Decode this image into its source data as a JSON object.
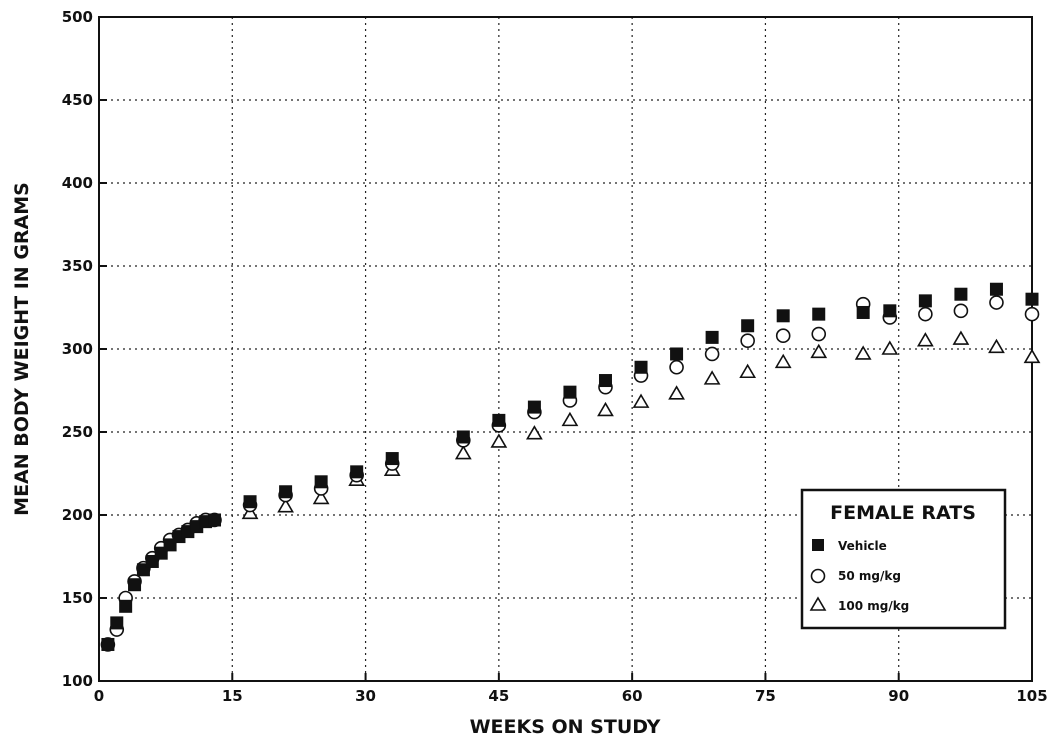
{
  "chart_data": {
    "type": "scatter",
    "title": "",
    "xlabel": "WEEKS ON STUDY",
    "ylabel": "MEAN BODY WEIGHT IN GRAMS",
    "xlim": [
      0,
      105
    ],
    "ylim": [
      100,
      500
    ],
    "xticks": [
      "0",
      "15",
      "30",
      "45",
      "60",
      "75",
      "90",
      "105"
    ],
    "yticks": [
      "100",
      "150",
      "200",
      "250",
      "300",
      "350",
      "400",
      "450",
      "500"
    ],
    "grid": true,
    "legend": {
      "title": "FEMALE RATS",
      "position": "lower-right"
    },
    "series": [
      {
        "name": "Vehicle",
        "marker": "filled-square",
        "x": [
          1,
          2,
          3,
          4,
          5,
          6,
          7,
          8,
          9,
          10,
          11,
          12,
          13,
          17,
          21,
          25,
          29,
          33,
          41,
          45,
          49,
          53,
          57,
          61,
          65,
          69,
          73,
          77,
          81,
          86,
          89,
          93,
          97,
          101,
          105
        ],
        "y": [
          122,
          135,
          145,
          158,
          167,
          172,
          177,
          182,
          187,
          190,
          193,
          196,
          197,
          208,
          214,
          220,
          226,
          234,
          247,
          257,
          265,
          274,
          281,
          289,
          297,
          307,
          314,
          320,
          321,
          322,
          323,
          329,
          333,
          336,
          330
        ]
      },
      {
        "name": "50 mg/kg",
        "marker": "open-circle",
        "x": [
          1,
          2,
          3,
          4,
          5,
          6,
          7,
          8,
          9,
          10,
          11,
          12,
          13,
          17,
          21,
          25,
          29,
          33,
          41,
          45,
          49,
          53,
          57,
          61,
          65,
          69,
          73,
          77,
          81,
          86,
          89,
          93,
          97,
          101,
          105
        ],
        "y": [
          122,
          131,
          150,
          160,
          168,
          174,
          180,
          185,
          188,
          191,
          195,
          197,
          197,
          206,
          212,
          216,
          224,
          231,
          245,
          254,
          262,
          269,
          277,
          284,
          289,
          297,
          305,
          308,
          309,
          327,
          319,
          321,
          323,
          328,
          321
        ]
      },
      {
        "name": "100 mg/kg",
        "marker": "open-triangle",
        "x": [
          17,
          21,
          25,
          29,
          33,
          41,
          45,
          49,
          53,
          57,
          61,
          65,
          69,
          73,
          77,
          81,
          86,
          89,
          93,
          97,
          101,
          105
        ],
        "y": [
          201,
          205,
          210,
          221,
          227,
          237,
          244,
          249,
          257,
          263,
          268,
          273,
          282,
          286,
          292,
          298,
          297,
          300,
          305,
          306,
          301,
          295
        ]
      }
    ]
  }
}
